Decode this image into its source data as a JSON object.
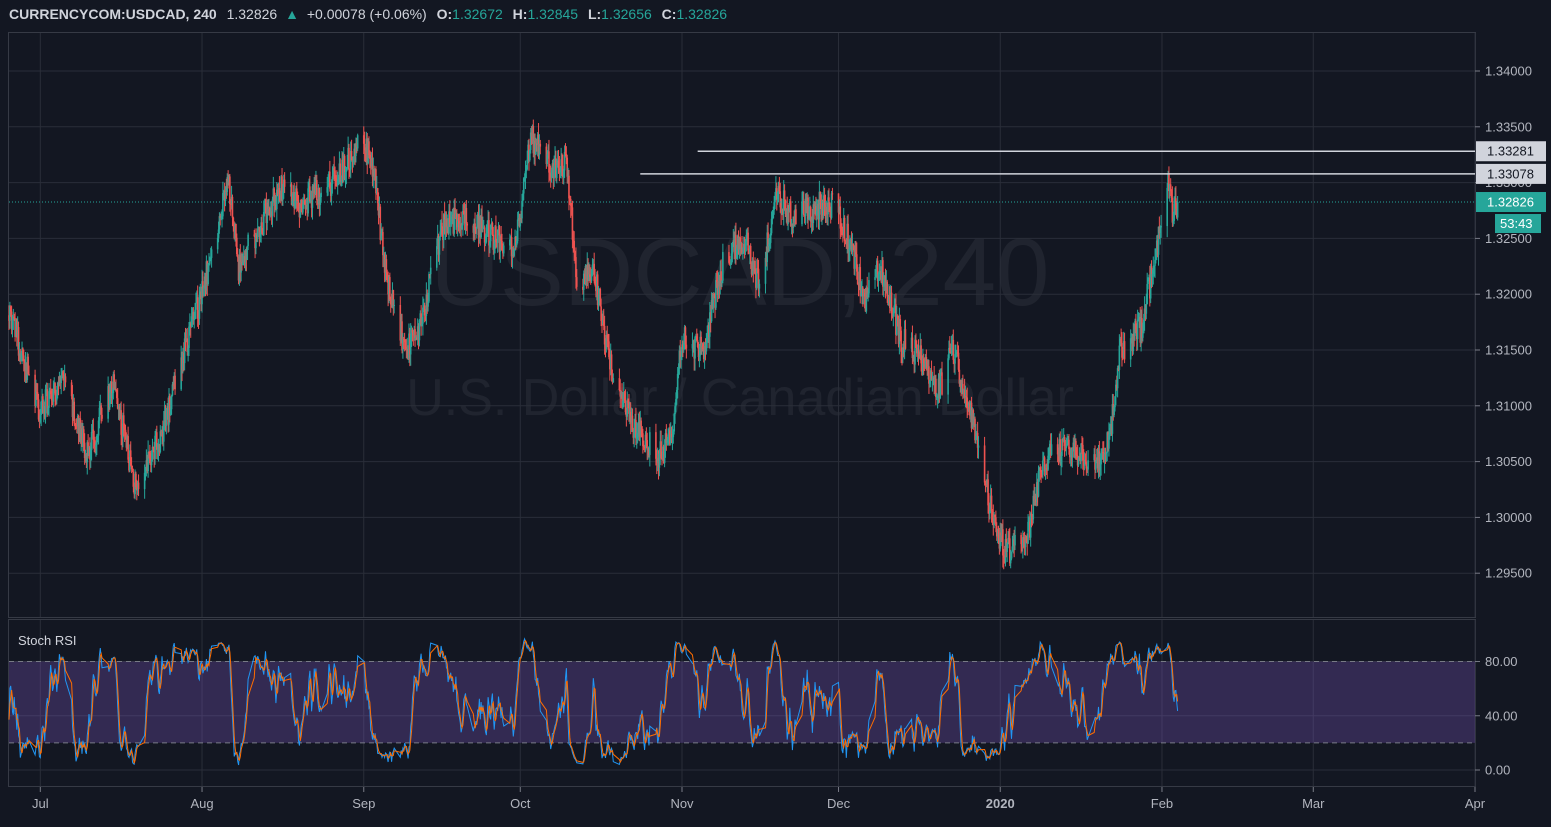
{
  "header": {
    "symbol": "CURRENCYCOM:USDCAD, 240",
    "last": "1.32826",
    "arrow": "▲",
    "change": "+0.00078 (+0.06%)",
    "o_label": "O:",
    "o_value": "1.32672",
    "h_label": "H:",
    "h_value": "1.32845",
    "l_label": "L:",
    "l_value": "1.32656",
    "c_label": "C:",
    "c_value": "1.32826"
  },
  "watermark": {
    "symbol": "USDCAD, 240",
    "description": "U.S. Dollar / Canadian Dollar"
  },
  "price_pane": {
    "y_ticks": [
      "1.34000",
      "1.33500",
      "1.33000",
      "1.32500",
      "1.32000",
      "1.31500",
      "1.31000",
      "1.30500",
      "1.30000",
      "1.29500"
    ],
    "levels": [
      {
        "value": 1.33281,
        "label": "1.33281",
        "start_month": "Nov"
      },
      {
        "value": 1.33078,
        "label": "1.33078",
        "start_month": "Oct"
      }
    ],
    "current_price": {
      "value": 1.32826,
      "label": "1.32826",
      "countdown": "53:43"
    }
  },
  "rsi_pane": {
    "title": "Stoch RSI",
    "y_ticks": [
      "80.00",
      "40.00",
      "0.00"
    ],
    "band": [
      20,
      80
    ],
    "k_color": "#2196f3",
    "d_color": "#ff6d00"
  },
  "x_axis": {
    "ticks": [
      "Jul",
      "Aug",
      "Sep",
      "Oct",
      "Nov",
      "Dec",
      "2020",
      "Feb",
      "Mar",
      "Apr"
    ]
  },
  "colors": {
    "background": "#131722",
    "up": "#26a69a",
    "down": "#ef5350",
    "grid": "#2a2e39",
    "text": "#b2b5be",
    "band_fill": "#7e57c2"
  },
  "chart_data": {
    "type": "candlestick",
    "title": "CURRENCYCOM:USDCAD, 240",
    "timeframe": "240",
    "x_range": [
      "2019-06-25",
      "2020-04-01"
    ],
    "ylim": [
      1.292,
      1.3425
    ],
    "series": [
      {
        "name": "price",
        "points": [
          {
            "x": "2019-06-25",
            "y": 1.3185
          },
          {
            "x": "2019-07-01",
            "y": 1.3095
          },
          {
            "x": "2019-07-05",
            "y": 1.3125
          },
          {
            "x": "2019-07-10",
            "y": 1.3055
          },
          {
            "x": "2019-07-15",
            "y": 1.312
          },
          {
            "x": "2019-07-19",
            "y": 1.303
          },
          {
            "x": "2019-07-24",
            "y": 1.307
          },
          {
            "x": "2019-07-30",
            "y": 1.317
          },
          {
            "x": "2019-08-01",
            "y": 1.32
          },
          {
            "x": "2019-08-06",
            "y": 1.33
          },
          {
            "x": "2019-08-08",
            "y": 1.3225
          },
          {
            "x": "2019-08-12",
            "y": 1.326
          },
          {
            "x": "2019-08-16",
            "y": 1.3295
          },
          {
            "x": "2019-08-20",
            "y": 1.328
          },
          {
            "x": "2019-08-26",
            "y": 1.33
          },
          {
            "x": "2019-09-01",
            "y": 1.334
          },
          {
            "x": "2019-09-03",
            "y": 1.331
          },
          {
            "x": "2019-09-05",
            "y": 1.3225
          },
          {
            "x": "2019-09-09",
            "y": 1.315
          },
          {
            "x": "2019-09-12",
            "y": 1.3175
          },
          {
            "x": "2019-09-16",
            "y": 1.326
          },
          {
            "x": "2019-09-20",
            "y": 1.327
          },
          {
            "x": "2019-09-25",
            "y": 1.3255
          },
          {
            "x": "2019-09-30",
            "y": 1.324
          },
          {
            "x": "2019-10-03",
            "y": 1.334
          },
          {
            "x": "2019-10-07",
            "y": 1.3315
          },
          {
            "x": "2019-10-10",
            "y": 1.3315
          },
          {
            "x": "2019-10-12",
            "y": 1.32
          },
          {
            "x": "2019-10-15",
            "y": 1.3225
          },
          {
            "x": "2019-10-18",
            "y": 1.314
          },
          {
            "x": "2019-10-23",
            "y": 1.308
          },
          {
            "x": "2019-10-28",
            "y": 1.3055
          },
          {
            "x": "2019-10-30",
            "y": 1.3075
          },
          {
            "x": "2019-11-01",
            "y": 1.316
          },
          {
            "x": "2019-11-05",
            "y": 1.315
          },
          {
            "x": "2019-11-09",
            "y": 1.323
          },
          {
            "x": "2019-11-13",
            "y": 1.325
          },
          {
            "x": "2019-11-16",
            "y": 1.3205
          },
          {
            "x": "2019-11-19",
            "y": 1.329
          },
          {
            "x": "2019-11-22",
            "y": 1.327
          },
          {
            "x": "2019-11-26",
            "y": 1.3275
          },
          {
            "x": "2019-11-29",
            "y": 1.3285
          },
          {
            "x": "2019-12-03",
            "y": 1.325
          },
          {
            "x": "2019-12-06",
            "y": 1.3195
          },
          {
            "x": "2019-12-09",
            "y": 1.3225
          },
          {
            "x": "2019-12-13",
            "y": 1.316
          },
          {
            "x": "2019-12-17",
            "y": 1.314
          },
          {
            "x": "2019-12-20",
            "y": 1.311
          },
          {
            "x": "2019-12-23",
            "y": 1.315
          },
          {
            "x": "2019-12-27",
            "y": 1.308
          },
          {
            "x": "2019-12-31",
            "y": 1.299
          },
          {
            "x": "2020-01-02",
            "y": 1.297
          },
          {
            "x": "2020-01-06",
            "y": 1.2975
          },
          {
            "x": "2020-01-09",
            "y": 1.305
          },
          {
            "x": "2020-01-13",
            "y": 1.306
          },
          {
            "x": "2020-01-16",
            "y": 1.3055
          },
          {
            "x": "2020-01-20",
            "y": 1.305
          },
          {
            "x": "2020-01-22",
            "y": 1.307
          },
          {
            "x": "2020-01-24",
            "y": 1.315
          },
          {
            "x": "2020-01-28",
            "y": 1.317
          },
          {
            "x": "2020-01-31",
            "y": 1.324
          },
          {
            "x": "2020-02-02",
            "y": 1.33
          },
          {
            "x": "2020-02-03",
            "y": 1.3275
          },
          {
            "x": "2020-02-04",
            "y": 1.32826
          }
        ]
      }
    ]
  }
}
